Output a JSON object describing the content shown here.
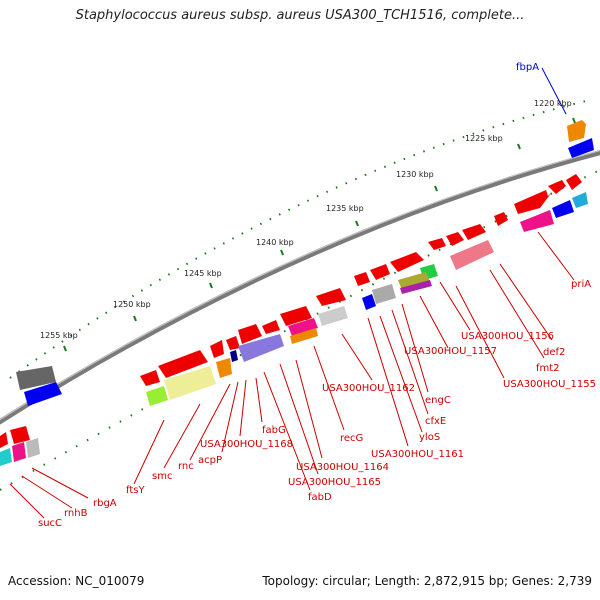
{
  "title": "Staphylococcus aureus subsp. aureus USA300_TCH1516, complete...",
  "footer": {
    "accession": "Accession: NC_010079",
    "topology": "Topology: circular; Length: 2,872,915 bp; Genes: 2,739"
  },
  "colors": {
    "backbone": "#7a7a7a",
    "tick": "#1a7a1a",
    "label": "#cc0000",
    "leader": "#cc0000",
    "highlight": "#0000cc"
  },
  "scale_labels": [
    "1220 kbp",
    "1225 kbp",
    "1230 kbp",
    "1235 kbp",
    "1240 kbp",
    "1245 kbp",
    "1250 kbp",
    "1255 kbp"
  ],
  "gene_labels": [
    "fbpA",
    "priA",
    "def2",
    "fmt2",
    "USA300HOU_1155",
    "USA300HOU_1156",
    "USA300HOU_1157",
    "engC",
    "cfxE",
    "yloS",
    "USA300HOU_1161",
    "USA300HOU_1162",
    "recG",
    "USA300HOU_1164",
    "USA300HOU_1165",
    "fabD",
    "fabG",
    "USA300HOU_1168",
    "acpP",
    "rnc",
    "smc",
    "ftsY",
    "rbgA",
    "rnhB",
    "sucC"
  ]
}
